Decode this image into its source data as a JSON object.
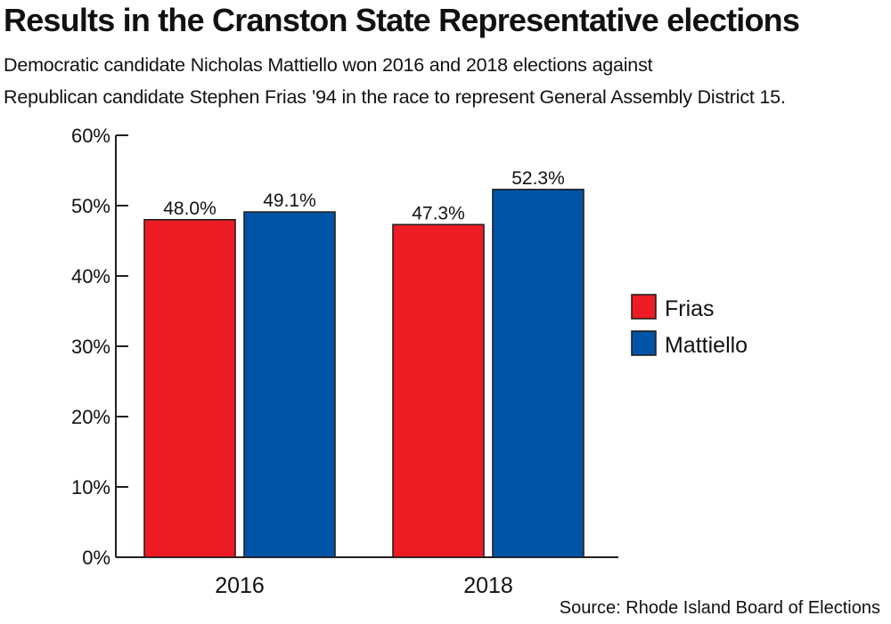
{
  "chart_data": {
    "type": "bar",
    "title": "Results in the Cranston State Representative elections",
    "subtitle_lines": [
      "Democratic candidate Nicholas Mattiello won 2016 and 2018 elections against",
      "Republican candidate Stephen Frias ’94 in the race to represent General Assembly District 15."
    ],
    "categories": [
      "2016",
      "2018"
    ],
    "series": [
      {
        "name": "Frias",
        "color": "#ed1c24",
        "values": [
          48.0,
          47.3
        ],
        "labels": [
          "48.0%",
          "47.3%"
        ]
      },
      {
        "name": "Mattiello",
        "color": "#0054a6",
        "values": [
          49.1,
          52.3
        ],
        "labels": [
          "49.1%",
          "52.3%"
        ]
      }
    ],
    "ylim": [
      0,
      60
    ],
    "yticks": [
      0,
      10,
      20,
      30,
      40,
      50,
      60
    ],
    "ytick_labels": [
      "0%",
      "10%",
      "20%",
      "30%",
      "40%",
      "50%",
      "60%"
    ],
    "xlabel": "",
    "ylabel": "",
    "grid": false,
    "legend": "right",
    "source": "Source: Rhode Island Board of Elections"
  }
}
